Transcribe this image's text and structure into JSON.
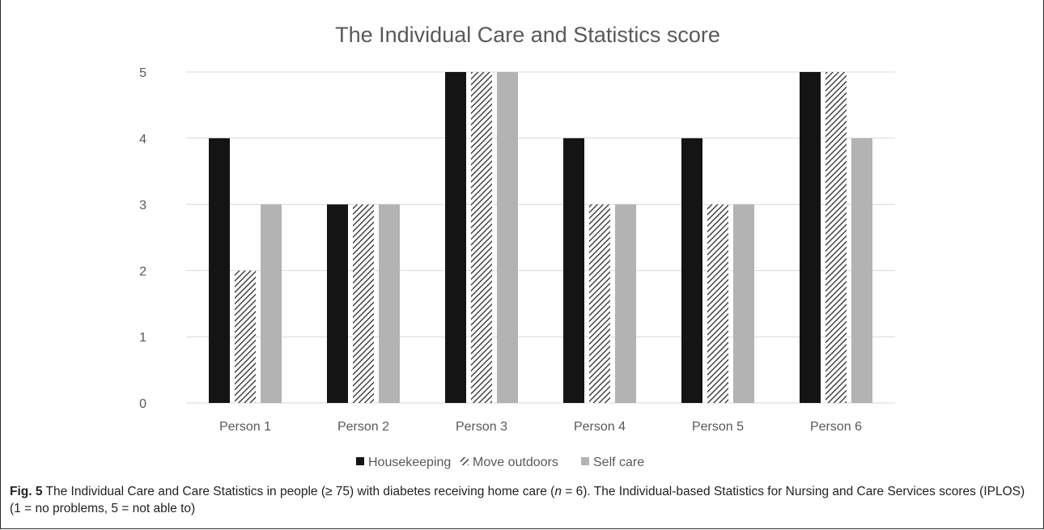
{
  "chart_data": {
    "type": "bar",
    "title": "The Individual Care and Statistics score",
    "xlabel": "",
    "ylabel": "",
    "ylim": [
      0,
      5
    ],
    "yticks": [
      0,
      1,
      2,
      3,
      4,
      5
    ],
    "grid": true,
    "legend_position": "bottom",
    "categories": [
      "Person 1",
      "Person 2",
      "Person 3",
      "Person 4",
      "Person 5",
      "Person 6"
    ],
    "series": [
      {
        "name": "Housekeeping",
        "values": [
          4,
          3,
          5,
          4,
          4,
          5
        ],
        "color": "#141414",
        "pattern": "solid"
      },
      {
        "name": "Move outdoors",
        "values": [
          2,
          3,
          5,
          3,
          3,
          5
        ],
        "color": "#3a3a3a",
        "pattern": "diagonal-hatch"
      },
      {
        "name": "Self care",
        "values": [
          3,
          3,
          5,
          3,
          3,
          4
        ],
        "color": "#b3b3b3",
        "pattern": "solid"
      }
    ]
  },
  "caption": {
    "fig_label": "Fig. 5",
    "text_part1": " The Individual Care and Care Statistics in people (≥ 75) with diabetes receiving home care (",
    "n_symbol": "n",
    "text_part2": " = 6). The Individual-based Statistics for Nursing and Care Services scores (IPLOS) (1 = no problems, 5 = not able to)"
  },
  "colors": {
    "grid": "#d9d9d9",
    "axis_text": "#595959",
    "title": "#595959"
  }
}
